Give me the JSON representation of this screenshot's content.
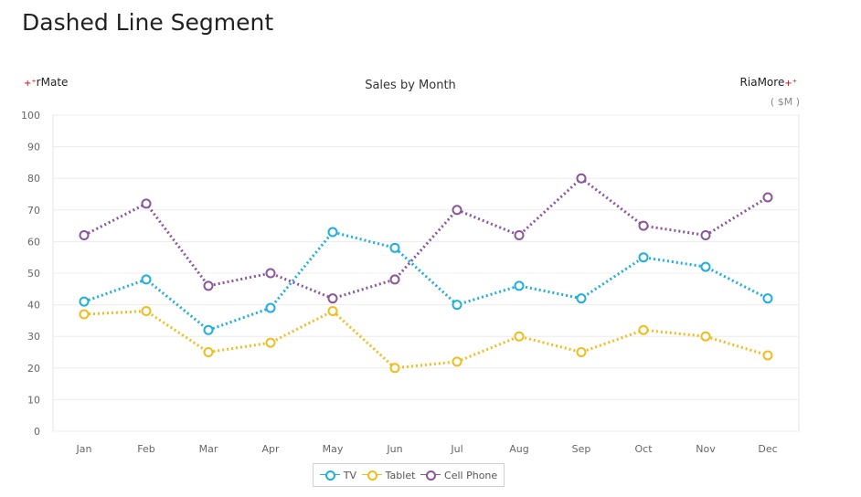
{
  "page_title": "Dashed Line Segment",
  "brand_left": "rMate",
  "brand_right": "RiaMore",
  "unit_label": "( $M )",
  "chart_data": {
    "type": "line",
    "title": "Sales by Month",
    "categories": [
      "Jan",
      "Feb",
      "Mar",
      "Apr",
      "May",
      "Jun",
      "Jul",
      "Aug",
      "Sep",
      "Oct",
      "Nov",
      "Dec"
    ],
    "ylim": [
      0,
      100
    ],
    "yticks": [
      0,
      10,
      20,
      30,
      40,
      50,
      60,
      70,
      80,
      90,
      100
    ],
    "grid": true,
    "line_style": "dotted",
    "legend_position": "bottom",
    "series": [
      {
        "name": "TV",
        "color": "#1eaee0",
        "values": [
          41,
          48,
          32,
          39,
          63,
          58,
          40,
          46,
          42,
          55,
          52,
          42
        ]
      },
      {
        "name": "Tablet",
        "color": "#f2bc1b",
        "values": [
          37,
          38,
          25,
          28,
          38,
          20,
          22,
          30,
          25,
          32,
          30,
          24
        ]
      },
      {
        "name": "Cell Phone",
        "color": "#8b559c",
        "values": [
          62,
          72,
          46,
          50,
          42,
          48,
          70,
          62,
          80,
          65,
          62,
          74
        ]
      }
    ]
  }
}
